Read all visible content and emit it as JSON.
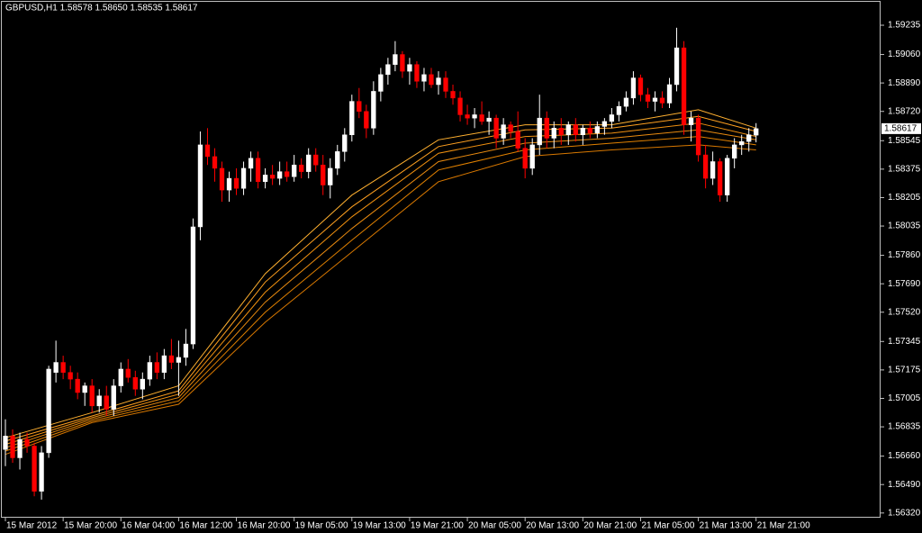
{
  "chart_data": {
    "type": "candlestick",
    "title": "GBPUSD,H1  1.58578 1.58650 1.58535 1.58617",
    "up_color": "#ffffff",
    "down_color": "#ff0000",
    "open": [
      1.567,
      1.5678,
      1.5665,
      1.5676,
      1.5672,
      1.5645,
      1.5668,
      1.5716,
      1.5722,
      1.5716,
      1.5712,
      1.5704,
      1.5708,
      1.5696,
      1.5702,
      1.5694,
      1.5708,
      1.5718,
      1.5713,
      1.5706,
      1.5712,
      1.5722,
      1.5716,
      1.5726,
      1.5722,
      1.5725,
      1.5733,
      1.5803,
      1.5852,
      1.5845,
      1.5838,
      1.5825,
      1.5832,
      1.5826,
      1.5838,
      1.5844,
      1.583,
      1.5834,
      1.5832,
      1.5836,
      1.5833,
      1.584,
      1.5836,
      1.5846,
      1.584,
      1.5828,
      1.5838,
      1.5848,
      1.5858,
      1.5878,
      1.5872,
      1.5862,
      1.5884,
      1.5894,
      1.59,
      1.5906,
      1.5896,
      1.59,
      1.589,
      1.5894,
      1.5888,
      1.5892,
      1.5884,
      1.588,
      1.587,
      1.5868,
      1.587,
      1.5866,
      1.5868,
      1.5856,
      1.5864,
      1.586,
      1.585,
      1.5838,
      1.5852,
      1.5868,
      1.5856,
      1.5862,
      1.5858,
      1.5864,
      1.5858,
      1.5862,
      1.5859,
      1.5863,
      1.5866,
      1.587,
      1.5875,
      1.588,
      1.5892,
      1.5882,
      1.5878,
      1.588,
      1.5877,
      1.5888,
      1.591,
      1.5864,
      1.5868,
      1.5846,
      1.5832,
      1.5842,
      1.5822,
      1.5844,
      1.5852,
      1.5854,
      1.58578
    ],
    "high": [
      1.5688,
      1.5682,
      1.568,
      1.568,
      1.5674,
      1.5672,
      1.572,
      1.5735,
      1.5726,
      1.572,
      1.5716,
      1.571,
      1.5712,
      1.5706,
      1.5708,
      1.5712,
      1.5722,
      1.5724,
      1.5717,
      1.5716,
      1.5726,
      1.5728,
      1.573,
      1.5736,
      1.5735,
      1.5742,
      1.5808,
      1.586,
      1.5862,
      1.585,
      1.5842,
      1.5836,
      1.5838,
      1.5842,
      1.5848,
      1.5848,
      1.5838,
      1.584,
      1.5842,
      1.5842,
      1.5846,
      1.5844,
      1.585,
      1.585,
      1.5846,
      1.5844,
      1.5852,
      1.5862,
      1.5882,
      1.5886,
      1.5876,
      1.589,
      1.5898,
      1.5904,
      1.5914,
      1.5908,
      1.5904,
      1.5902,
      1.5898,
      1.5898,
      1.5896,
      1.5896,
      1.5888,
      1.5884,
      1.5876,
      1.5874,
      1.5878,
      1.5872,
      1.587,
      1.5868,
      1.5866,
      1.5872,
      1.5856,
      1.5856,
      1.5882,
      1.5872,
      1.5866,
      1.5868,
      1.5866,
      1.5868,
      1.5864,
      1.5866,
      1.5866,
      1.5868,
      1.5874,
      1.5878,
      1.5884,
      1.5896,
      1.5894,
      1.5886,
      1.5884,
      1.5884,
      1.5892,
      1.5922,
      1.5914,
      1.5872,
      1.587,
      1.5852,
      1.5848,
      1.5844,
      1.5846,
      1.5856,
      1.5858,
      1.5862,
      1.5865
    ],
    "low": [
      1.566,
      1.5662,
      1.5658,
      1.5668,
      1.5642,
      1.564,
      1.5665,
      1.571,
      1.5712,
      1.5706,
      1.57,
      1.5696,
      1.5692,
      1.5692,
      1.569,
      1.569,
      1.5704,
      1.571,
      1.5702,
      1.57,
      1.5708,
      1.5712,
      1.5712,
      1.5718,
      1.5702,
      1.572,
      1.573,
      1.5795,
      1.584,
      1.583,
      1.5818,
      1.5818,
      1.5822,
      1.5822,
      1.583,
      1.5826,
      1.5826,
      1.5828,
      1.5828,
      1.583,
      1.583,
      1.5832,
      1.5832,
      1.5836,
      1.5822,
      1.582,
      1.5834,
      1.5842,
      1.5854,
      1.5868,
      1.5856,
      1.5858,
      1.5878,
      1.5888,
      1.5896,
      1.5892,
      1.5888,
      1.5886,
      1.5884,
      1.5886,
      1.5882,
      1.588,
      1.5876,
      1.5866,
      1.5864,
      1.5862,
      1.5864,
      1.5858,
      1.585,
      1.5852,
      1.5856,
      1.5848,
      1.5832,
      1.5834,
      1.5846,
      1.585,
      1.585,
      1.5852,
      1.5852,
      1.5854,
      1.5852,
      1.5856,
      1.5856,
      1.5858,
      1.5862,
      1.5866,
      1.5872,
      1.5876,
      1.5878,
      1.5874,
      1.5872,
      1.5874,
      1.5874,
      1.5884,
      1.5858,
      1.5854,
      1.5842,
      1.5826,
      1.5828,
      1.5818,
      1.5818,
      1.5838,
      1.5846,
      1.5848,
      1.58535
    ],
    "close": [
      1.5678,
      1.5665,
      1.5676,
      1.5672,
      1.5645,
      1.5668,
      1.5718,
      1.5722,
      1.5716,
      1.5712,
      1.5704,
      1.5708,
      1.5696,
      1.5702,
      1.5694,
      1.5708,
      1.5718,
      1.5713,
      1.5706,
      1.5712,
      1.5722,
      1.5716,
      1.5726,
      1.5722,
      1.5725,
      1.5733,
      1.5803,
      1.5852,
      1.5845,
      1.5838,
      1.5825,
      1.5832,
      1.5826,
      1.5838,
      1.5844,
      1.583,
      1.5834,
      1.5832,
      1.5836,
      1.5833,
      1.584,
      1.5836,
      1.5846,
      1.584,
      1.5828,
      1.5838,
      1.5848,
      1.5858,
      1.5878,
      1.5872,
      1.5862,
      1.5884,
      1.5894,
      1.59,
      1.5906,
      1.5896,
      1.59,
      1.589,
      1.5894,
      1.5888,
      1.5892,
      1.5884,
      1.588,
      1.587,
      1.5868,
      1.587,
      1.5866,
      1.5868,
      1.5856,
      1.5864,
      1.586,
      1.585,
      1.5838,
      1.5852,
      1.5868,
      1.5856,
      1.5862,
      1.5858,
      1.5864,
      1.5858,
      1.5862,
      1.5859,
      1.5863,
      1.5866,
      1.587,
      1.5875,
      1.588,
      1.5892,
      1.5882,
      1.5878,
      1.588,
      1.5877,
      1.5888,
      1.591,
      1.5864,
      1.5868,
      1.5846,
      1.5832,
      1.5842,
      1.5822,
      1.5844,
      1.5852,
      1.5854,
      1.5858,
      1.58617
    ],
    "overlays": [
      {
        "color": "#ffb030",
        "x": [
          0,
          12,
          24,
          36,
          48,
          60,
          72,
          84,
          96,
          104
        ],
        "values": [
          1.5677,
          1.5692,
          1.5708,
          1.5775,
          1.5822,
          1.5855,
          1.5864,
          1.5864,
          1.5873,
          1.5862
        ]
      },
      {
        "color": "#ffa020",
        "x": [
          0,
          12,
          24,
          36,
          48,
          60,
          72,
          84,
          96,
          104
        ],
        "values": [
          1.5675,
          1.569,
          1.5705,
          1.577,
          1.5815,
          1.5851,
          1.5861,
          1.5862,
          1.5869,
          1.586
        ]
      },
      {
        "color": "#f09010",
        "x": [
          0,
          12,
          24,
          36,
          48,
          60,
          72,
          84,
          96,
          104
        ],
        "values": [
          1.5673,
          1.5689,
          1.5703,
          1.5764,
          1.5809,
          1.5847,
          1.5857,
          1.5859,
          1.5865,
          1.5857
        ]
      },
      {
        "color": "#e88a10",
        "x": [
          0,
          12,
          24,
          36,
          48,
          60,
          72,
          84,
          96,
          104
        ],
        "values": [
          1.5671,
          1.5688,
          1.5701,
          1.5758,
          1.5802,
          1.5842,
          1.5853,
          1.5856,
          1.5861,
          1.5855
        ]
      },
      {
        "color": "#e08000",
        "x": [
          0,
          12,
          24,
          36,
          48,
          60,
          72,
          84,
          96,
          104
        ],
        "values": [
          1.5669,
          1.5687,
          1.5699,
          1.5752,
          1.5795,
          1.5837,
          1.5849,
          1.5853,
          1.5857,
          1.5852
        ]
      },
      {
        "color": "#d87800",
        "x": [
          0,
          12,
          24,
          36,
          48,
          60,
          72,
          84,
          96,
          104
        ],
        "values": [
          1.5667,
          1.5686,
          1.5697,
          1.5746,
          1.5788,
          1.583,
          1.5845,
          1.5849,
          1.5852,
          1.5849
        ]
      }
    ],
    "xlim": [
      -0.5,
      121.25
    ],
    "ylim": [
      1.56292,
      1.59375
    ],
    "xticks": [
      {
        "value": 0,
        "label": "15 Mar 2012"
      },
      {
        "value": 8,
        "label": "15 Mar 20:00"
      },
      {
        "value": 16,
        "label": "16 Mar 04:00"
      },
      {
        "value": 24,
        "label": "16 Mar 12:00"
      },
      {
        "value": 32,
        "label": "16 Mar 20:00"
      },
      {
        "value": 40,
        "label": "19 Mar 05:00"
      },
      {
        "value": 48,
        "label": "19 Mar 13:00"
      },
      {
        "value": 56,
        "label": "19 Mar 21:00"
      },
      {
        "value": 64,
        "label": "20 Mar 05:00"
      },
      {
        "value": 72,
        "label": "20 Mar 13:00"
      },
      {
        "value": 80,
        "label": "20 Mar 21:00"
      },
      {
        "value": 88,
        "label": "21 Mar 05:00"
      },
      {
        "value": 96,
        "label": "21 Mar 13:00"
      },
      {
        "value": 104,
        "label": "21 Mar 21:00"
      }
    ],
    "yticks": [
      1.59235,
      {
        "value": 1.5906,
        "label": "1.59060"
      },
      {
        "value": 1.5889,
        "label": "1.58890"
      },
      {
        "value": 1.5872,
        "label": "1.58720"
      },
      1.58545,
      1.58375,
      1.58205,
      1.58035,
      {
        "value": 1.5786,
        "label": "1.57860"
      },
      {
        "value": 1.5769,
        "label": "1.57690"
      },
      {
        "value": 1.5752,
        "label": "1.57520"
      },
      1.57345,
      1.57175,
      1.57005,
      1.56835,
      {
        "value": 1.5666,
        "label": "1.56660"
      },
      {
        "value": 1.5649,
        "label": "1.56490"
      },
      {
        "value": 1.5632,
        "label": "1.56320"
      }
    ]
  }
}
